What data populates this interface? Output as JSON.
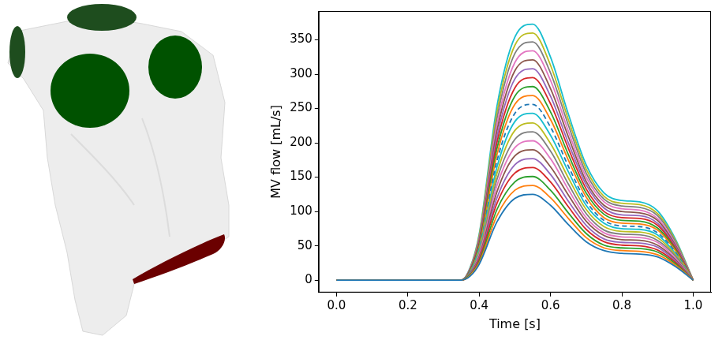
{
  "chart_data": {
    "type": "line",
    "x_label": "Time [s]",
    "y_label": "MV flow [mL/s]",
    "x": [
      0,
      0.35,
      0.375,
      0.4,
      0.45,
      0.5,
      0.55,
      0.6,
      0.65,
      0.7,
      0.75,
      0.8,
      0.85,
      0.9,
      0.95,
      1.0
    ],
    "xlim": [
      -0.05,
      1.05
    ],
    "xticks": [
      {
        "value": 0,
        "label": "0.0"
      },
      {
        "value": 0.2,
        "label": "0.2"
      },
      {
        "value": 0.4,
        "label": "0.4"
      },
      {
        "value": 0.6,
        "label": "0.6"
      },
      {
        "value": 0.8,
        "label": "0.8"
      },
      {
        "value": 1.0,
        "label": "1.0"
      }
    ],
    "ylim": [
      -18,
      392
    ],
    "yticks": [
      0,
      50,
      100,
      150,
      200,
      250,
      300,
      350
    ],
    "grid": false,
    "series": [
      {
        "color": "#1f77b4",
        "values": [
          0,
          0,
          6,
          23,
          85,
          119,
          125,
          109,
          81,
          56,
          43,
          39,
          38,
          34,
          20,
          0
        ]
      },
      {
        "color": "#ff7f0e",
        "values": [
          0,
          0,
          7,
          25,
          94,
          131,
          138,
          120,
          90,
          62,
          47,
          43,
          42,
          37,
          22,
          0
        ]
      },
      {
        "color": "#2ca02c",
        "values": [
          0,
          0,
          8,
          27,
          103,
          143,
          151,
          131,
          98,
          68,
          51,
          47,
          46,
          41,
          24,
          0
        ]
      },
      {
        "color": "#d62728",
        "values": [
          0,
          0,
          8,
          30,
          112,
          156,
          164,
          143,
          107,
          74,
          56,
          51,
          50,
          44,
          26,
          0
        ]
      },
      {
        "color": "#9467bd",
        "values": [
          0,
          0,
          9,
          32,
          120,
          168,
          177,
          154,
          115,
          80,
          60,
          55,
          54,
          48,
          28,
          0
        ]
      },
      {
        "color": "#8c564b",
        "values": [
          0,
          0,
          10,
          34,
          129,
          181,
          190,
          165,
          124,
          86,
          65,
          59,
          58,
          51,
          30,
          0
        ]
      },
      {
        "color": "#e377c2",
        "values": [
          0,
          0,
          10,
          37,
          138,
          193,
          203,
          177,
          132,
          91,
          69,
          63,
          62,
          55,
          32,
          0
        ]
      },
      {
        "color": "#7f7f7f",
        "values": [
          0,
          0,
          11,
          39,
          147,
          205,
          216,
          188,
          140,
          97,
          73,
          67,
          66,
          58,
          35,
          0
        ]
      },
      {
        "color": "#bcbd22",
        "values": [
          0,
          0,
          11,
          41,
          156,
          218,
          229,
          199,
          149,
          103,
          78,
          71,
          70,
          62,
          37,
          0
        ]
      },
      {
        "color": "#17becf",
        "values": [
          0,
          0,
          12,
          44,
          165,
          231,
          243,
          211,
          158,
          109,
          83,
          75,
          74,
          66,
          39,
          0
        ]
      },
      {
        "color": "#1f77b4",
        "line_style": "dashed",
        "values": [
          0,
          0,
          13,
          46,
          174,
          243,
          256,
          223,
          166,
          115,
          87,
          79,
          78,
          69,
          41,
          0
        ]
      },
      {
        "color": "#ff7f0e",
        "values": [
          0,
          0,
          13,
          48,
          183,
          256,
          269,
          234,
          175,
          121,
          91,
          83,
          82,
          73,
          43,
          0
        ]
      },
      {
        "color": "#2ca02c",
        "values": [
          0,
          0,
          14,
          51,
          192,
          268,
          282,
          245,
          183,
          127,
          96,
          87,
          86,
          76,
          45,
          0
        ]
      },
      {
        "color": "#d62728",
        "values": [
          0,
          0,
          15,
          53,
          201,
          280,
          295,
          257,
          192,
          133,
          100,
          91,
          90,
          80,
          47,
          0
        ]
      },
      {
        "color": "#9467bd",
        "values": [
          0,
          0,
          15,
          55,
          209,
          293,
          308,
          268,
          200,
          139,
          105,
          95,
          94,
          83,
          49,
          0
        ]
      },
      {
        "color": "#8c564b",
        "values": [
          0,
          0,
          16,
          58,
          218,
          305,
          321,
          279,
          209,
          144,
          109,
          100,
          98,
          87,
          51,
          0
        ]
      },
      {
        "color": "#e377c2",
        "values": [
          0,
          0,
          17,
          60,
          227,
          317,
          334,
          291,
          217,
          150,
          114,
          104,
          102,
          90,
          53,
          0
        ]
      },
      {
        "color": "#7f7f7f",
        "values": [
          0,
          0,
          17,
          62,
          236,
          330,
          347,
          302,
          226,
          156,
          118,
          108,
          106,
          94,
          56,
          0
        ]
      },
      {
        "color": "#bcbd22",
        "values": [
          0,
          0,
          18,
          65,
          245,
          342,
          360,
          313,
          234,
          162,
          122,
          112,
          110,
          97,
          58,
          0
        ]
      },
      {
        "color": "#17becf",
        "values": [
          0,
          0,
          19,
          67,
          254,
          354,
          373,
          325,
          242,
          168,
          127,
          116,
          114,
          101,
          60,
          0
        ]
      }
    ]
  }
}
